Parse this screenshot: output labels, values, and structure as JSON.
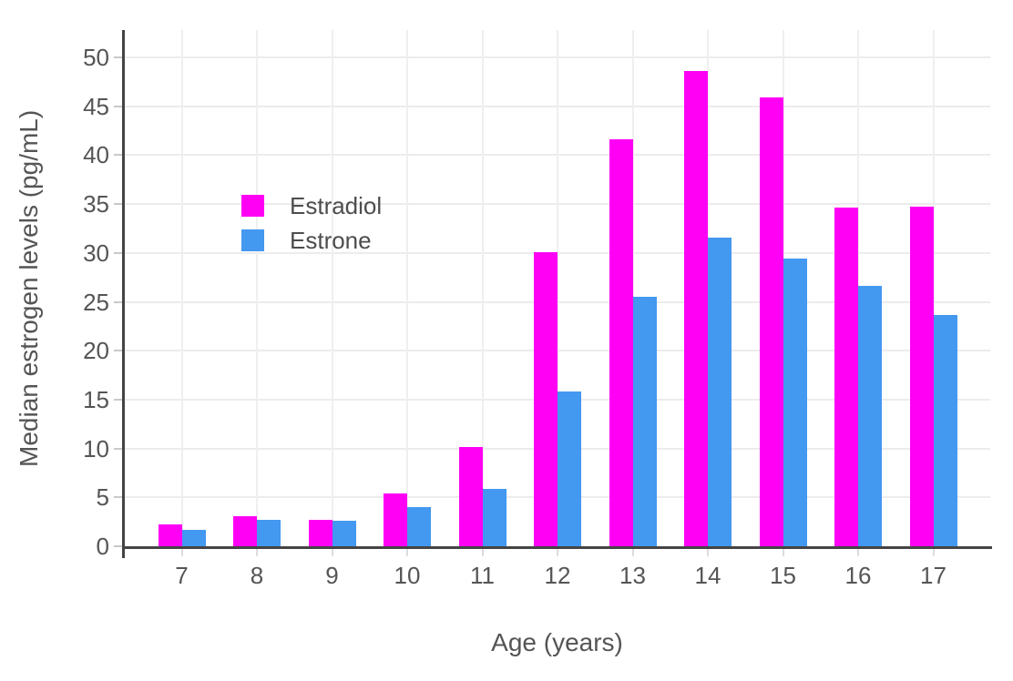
{
  "chart_data": {
    "type": "bar",
    "title": "",
    "xlabel": "Age (years)",
    "ylabel": "Median estrogen levels (pg/mL)",
    "categories": [
      7,
      8,
      9,
      10,
      11,
      12,
      13,
      14,
      15,
      16,
      17
    ],
    "series": [
      {
        "name": "Estradiol",
        "color": "#ff00f5",
        "values": [
          2.2,
          3.1,
          2.7,
          5.4,
          10.2,
          30.1,
          41.6,
          48.6,
          45.9,
          34.6,
          34.7
        ]
      },
      {
        "name": "Estrone",
        "color": "#4398f0",
        "values": [
          1.7,
          2.7,
          2.6,
          4.0,
          5.9,
          15.8,
          25.5,
          31.6,
          29.4,
          26.6,
          23.7
        ]
      }
    ],
    "yticks": [
      0,
      5,
      10,
      15,
      20,
      25,
      30,
      35,
      40,
      45,
      50
    ],
    "ylim": [
      0,
      52.8
    ],
    "grid": true,
    "legend_position": "inside-top-left"
  },
  "colors": {
    "background": "#ffffff",
    "axis_line": "#444444",
    "gridline": "#ececec",
    "tick_mark": "#c9c9c9",
    "tick_label": "#555555",
    "axis_title": "#555555",
    "legend_text": "#4d4d4d",
    "estradiol": "#ff00f5",
    "estrone": "#4398f0"
  }
}
